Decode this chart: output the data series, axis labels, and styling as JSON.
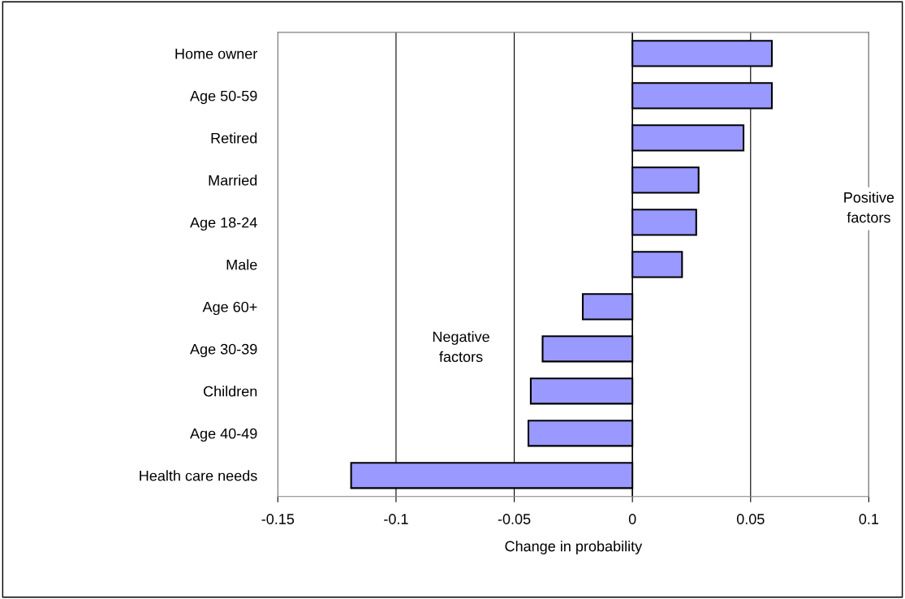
{
  "chart_data": {
    "type": "bar",
    "orientation": "horizontal",
    "xlabel": "Change in probability",
    "categories": [
      "Home owner",
      "Age 50-59",
      "Retired",
      "Married",
      "Age 18-24",
      "Male",
      "Age 60+",
      "Age 30-39",
      "Children",
      "Age 40-49",
      "Health care needs"
    ],
    "values": [
      0.059,
      0.059,
      0.047,
      0.028,
      0.027,
      0.021,
      -0.021,
      -0.038,
      -0.043,
      -0.044,
      -0.119
    ],
    "color": "#9999ff",
    "xlim": [
      -0.15,
      0.1
    ],
    "xticks": [
      -0.15,
      -0.1,
      -0.05,
      0,
      0.05,
      0.1
    ],
    "grid": "x",
    "ref_lines": [
      {
        "axis": "x",
        "value": 0,
        "color": "#000000"
      }
    ],
    "annotations": [
      "Negative factors",
      "Positive factors"
    ]
  }
}
